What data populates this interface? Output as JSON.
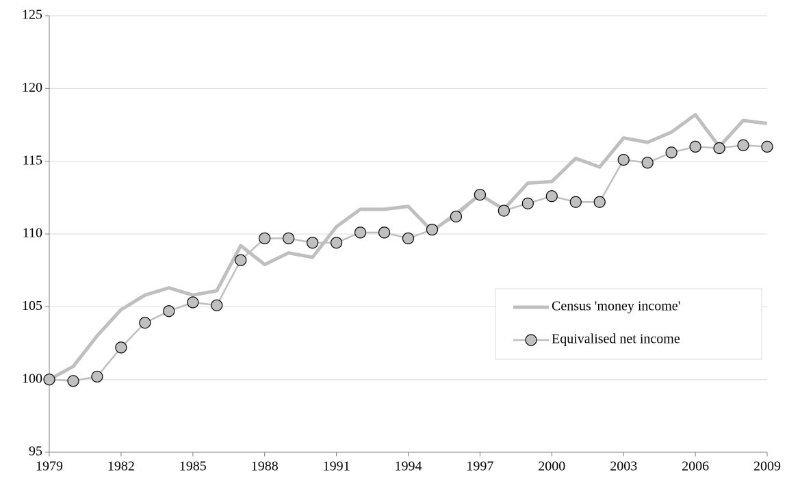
{
  "chart_data": {
    "type": "line",
    "x": [
      1979,
      1980,
      1981,
      1982,
      1983,
      1984,
      1985,
      1986,
      1987,
      1988,
      1989,
      1990,
      1991,
      1992,
      1993,
      1994,
      1995,
      1996,
      1997,
      1998,
      1999,
      2000,
      2001,
      2002,
      2003,
      2004,
      2005,
      2006,
      2007,
      2008,
      2009
    ],
    "series": [
      {
        "name": "Census 'money income'",
        "color": "#bfbfbf",
        "values": [
          100.0,
          100.9,
          103.0,
          104.8,
          105.8,
          106.3,
          105.8,
          106.1,
          109.2,
          107.9,
          108.7,
          108.4,
          110.5,
          111.7,
          111.7,
          111.9,
          110.2,
          111.4,
          112.7,
          111.7,
          113.5,
          113.6,
          115.2,
          114.6,
          116.6,
          116.3,
          117.0,
          118.2,
          116.0,
          117.8,
          117.6
        ]
      },
      {
        "name": "Equivalised net income",
        "color": "#bfbfbf",
        "marker": "circle",
        "marker_color": "#c0c0c0",
        "values": [
          100.0,
          99.9,
          100.2,
          102.2,
          103.9,
          104.7,
          105.3,
          105.1,
          108.2,
          109.7,
          109.7,
          109.4,
          109.4,
          110.1,
          110.1,
          109.7,
          110.3,
          111.2,
          112.7,
          111.6,
          112.1,
          112.6,
          112.2,
          112.2,
          115.1,
          114.9,
          115.6,
          116.0,
          115.9,
          116.1,
          116.0
        ]
      }
    ],
    "xlim": [
      1979,
      2009
    ],
    "xticks": [
      1979,
      1982,
      1985,
      1988,
      1991,
      1994,
      1997,
      2000,
      2003,
      2006,
      2009
    ],
    "ylim": [
      95,
      125
    ],
    "yticks": [
      95,
      100,
      105,
      110,
      115,
      120,
      125
    ],
    "grid": true,
    "legend": "right"
  }
}
